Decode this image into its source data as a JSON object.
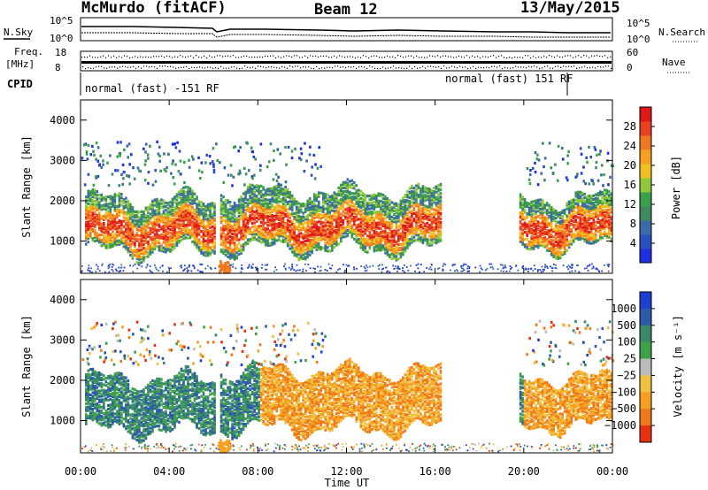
{
  "header": {
    "station": "McMurdo (fitACF)",
    "beam": "Beam 12",
    "date": "13/May/2015"
  },
  "strips": {
    "nsky_label": "N.Sky",
    "nsearch_label": "N.Search",
    "noise_left_ticks": [
      "10^5",
      "10^0"
    ],
    "noise_right_ticks": [
      "10^5",
      "10^0"
    ],
    "freq_label_1": "Freq.",
    "freq_label_2": "[MHz]",
    "freq_ticks": [
      "18",
      "8"
    ],
    "nave_label": "Nave",
    "nave_ticks": [
      "60",
      "0"
    ],
    "cpid_label": "CPID",
    "cpid_left": "normal (fast) -151 RF",
    "cpid_right": "normal (fast) 151 RF"
  },
  "xaxis": {
    "label": "Time UT",
    "ticks": [
      "00:00",
      "04:00",
      "08:00",
      "12:00",
      "16:00",
      "20:00",
      "00:00"
    ]
  },
  "colors": {
    "power": [
      "#1d2fe0",
      "#2a4fc0",
      "#3b6aa8",
      "#3f8a60",
      "#3aa04a",
      "#8fc83a",
      "#f0c020",
      "#f5a020",
      "#f07820",
      "#e84020",
      "#e01818"
    ],
    "velocity": [
      "#1f3fd0",
      "#2a5aa8",
      "#3a8a6a",
      "#3fa04a",
      "#bbbbbb",
      "#f0c040",
      "#f5a020",
      "#f07818",
      "#e83010"
    ]
  },
  "chart_data": [
    {
      "type": "heatmap",
      "ylabel": "Slant Range [km]",
      "ylim": [
        200,
        4500
      ],
      "yticks": [
        "1000",
        "2000",
        "3000",
        "4000"
      ],
      "x_hours": [
        0,
        24
      ],
      "colorbar_label": "Power [dB]",
      "colorbar_ticks": [
        "4",
        "8",
        "12",
        "16",
        "20",
        "24",
        "28"
      ],
      "colorbar_range": [
        0,
        32
      ]
    },
    {
      "type": "heatmap",
      "ylabel": "Slant Range [km]",
      "ylim": [
        200,
        4500
      ],
      "yticks": [
        "1000",
        "2000",
        "3000",
        "4000"
      ],
      "x_hours": [
        0,
        24
      ],
      "colorbar_label": "Velocity [m s⁻¹]",
      "colorbar_ticks": [
        "1000",
        "500",
        "100",
        "25",
        "−25",
        "−100",
        "−500",
        "−1000"
      ]
    }
  ]
}
